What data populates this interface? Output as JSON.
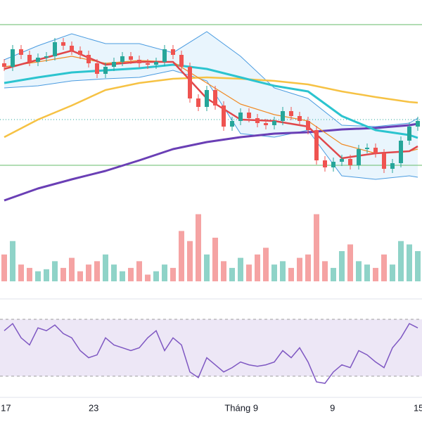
{
  "chart_data": {
    "type": "candlestick",
    "ylim": [
      0,
      300
    ],
    "open": [
      210,
      205,
      230,
      222,
      212,
      218,
      220,
      240,
      235,
      228,
      222,
      210,
      195,
      205,
      212,
      220,
      215,
      210,
      208,
      212,
      230,
      222,
      205,
      160,
      148,
      172,
      150,
      120,
      128,
      140,
      132,
      125,
      122,
      128,
      142,
      135,
      128,
      115,
      72,
      62,
      70,
      74,
      65,
      88,
      90,
      82,
      60,
      68,
      100,
      120
    ],
    "close": [
      205,
      230,
      222,
      212,
      218,
      220,
      240,
      235,
      228,
      222,
      210,
      195,
      205,
      212,
      220,
      215,
      210,
      208,
      212,
      230,
      222,
      205,
      160,
      148,
      172,
      150,
      120,
      128,
      140,
      132,
      125,
      122,
      128,
      142,
      135,
      128,
      115,
      72,
      62,
      70,
      74,
      65,
      88,
      90,
      82,
      60,
      68,
      100,
      120,
      128
    ],
    "high": [
      216,
      236,
      236,
      228,
      224,
      226,
      246,
      246,
      241,
      234,
      228,
      216,
      211,
      218,
      226,
      226,
      221,
      216,
      218,
      236,
      236,
      228,
      211,
      166,
      178,
      178,
      156,
      134,
      146,
      146,
      138,
      131,
      134,
      148,
      148,
      141,
      134,
      121,
      78,
      76,
      80,
      80,
      94,
      96,
      96,
      88,
      74,
      106,
      126,
      134
    ],
    "low": [
      199,
      199,
      216,
      206,
      206,
      212,
      214,
      229,
      222,
      216,
      204,
      189,
      189,
      199,
      206,
      209,
      204,
      202,
      202,
      206,
      216,
      199,
      154,
      142,
      142,
      144,
      114,
      114,
      122,
      126,
      119,
      116,
      116,
      122,
      129,
      122,
      109,
      66,
      56,
      56,
      64,
      59,
      59,
      82,
      76,
      54,
      54,
      62,
      94,
      114
    ],
    "up_color": "#26a69a",
    "down_color": "#ef5350",
    "levels": [
      265,
      65
    ],
    "level_color": "#66bb6a",
    "price_line": 130,
    "lines_x": [
      0,
      4,
      8,
      12,
      16,
      20,
      24,
      28,
      32,
      36,
      40,
      44,
      48,
      49
    ],
    "band": {
      "color": "#4a9be0",
      "fill": "#e3f2fd",
      "upper": [
        215,
        235,
        252,
        238,
        238,
        225,
        255,
        220,
        175,
        160,
        122,
        120,
        125,
        132
      ],
      "lower": [
        175,
        178,
        185,
        188,
        190,
        200,
        185,
        110,
        105,
        115,
        50,
        45,
        50,
        48
      ]
    },
    "series": [
      {
        "color": "#f6c244",
        "width": 2.5,
        "values": [
          105,
          130,
          150,
          172,
          182,
          188,
          190,
          188,
          185,
          180,
          170,
          162,
          155,
          154
        ]
      },
      {
        "color": "#6a3fb5",
        "width": 3,
        "values": [
          15,
          32,
          45,
          57,
          72,
          88,
          98,
          105,
          110,
          112,
          116,
          118,
          122,
          124
        ]
      },
      {
        "color": "#2cc4cf",
        "width": 3,
        "values": [
          182,
          190,
          197,
          200,
          203,
          208,
          202,
          190,
          178,
          170,
          135,
          115,
          108,
          104
        ]
      },
      {
        "color": "#f08a24",
        "width": 1.2,
        "values": [
          205,
          212,
          220,
          210,
          214,
          212,
          182,
          152,
          137,
          128,
          95,
          82,
          85,
          88
        ]
      },
      {
        "color": "#e0464a",
        "width": 2.5,
        "values": [
          202,
          215,
          228,
          208,
          212,
          212,
          160,
          130,
          128,
          120,
          75,
          82,
          85,
          92
        ]
      }
    ],
    "volume": [
      40,
      60,
      25,
      20,
      15,
      18,
      30,
      20,
      35,
      15,
      25,
      30,
      40,
      25,
      15,
      20,
      30,
      10,
      15,
      25,
      20,
      75,
      60,
      100,
      40,
      65,
      30,
      20,
      35,
      25,
      40,
      50,
      25,
      30,
      20,
      35,
      40,
      100,
      30,
      20,
      45,
      55,
      30,
      25,
      20,
      40,
      25,
      60,
      55,
      45
    ],
    "volume_ylim": [
      0,
      110
    ],
    "volume_up_color": "#8fd3c8",
    "volume_down_color": "#f5a3a3",
    "rsi": [
      62,
      67,
      57,
      52,
      64,
      62,
      66,
      60,
      57,
      48,
      43,
      45,
      57,
      52,
      50,
      48,
      50,
      57,
      62,
      48,
      57,
      52,
      33,
      29,
      43,
      38,
      33,
      36,
      40,
      38,
      37,
      38,
      40,
      48,
      43,
      50,
      40,
      26,
      25,
      33,
      38,
      36,
      48,
      45,
      40,
      36,
      50,
      57,
      67,
      64
    ],
    "rsi_ylim": [
      25,
      72
    ],
    "rsi_bands": [
      70,
      30
    ],
    "rsi_color": "#7e57c2",
    "rsi_fill": "#ede7f6",
    "xticks": [
      {
        "value": 0.2,
        "label": "17"
      },
      {
        "value": 10.6,
        "label": "23"
      },
      {
        "value": 28.1,
        "label": "Tháng 9"
      },
      {
        "value": 38.9,
        "label": "9"
      },
      {
        "value": 49.1,
        "label": "15"
      }
    ]
  }
}
